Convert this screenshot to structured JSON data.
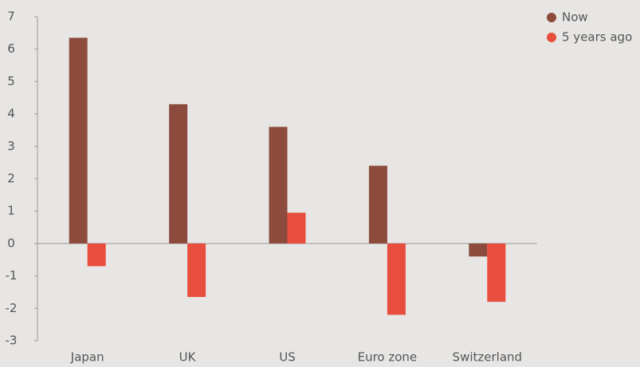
{
  "chart_data": {
    "type": "bar",
    "categories": [
      "Japan",
      "UK",
      "US",
      "Euro zone",
      "Switzerland"
    ],
    "series": [
      {
        "name": "Now",
        "color": "#8c4b3d",
        "values": [
          6.35,
          4.3,
          3.6,
          2.4,
          -0.4
        ]
      },
      {
        "name": "5 years ago",
        "color": "#e84e3e",
        "values": [
          -0.7,
          -1.65,
          0.95,
          -2.2,
          -1.8
        ]
      }
    ],
    "ylim": [
      -3,
      7
    ],
    "yticks": [
      -3,
      -2,
      -1,
      0,
      1,
      2,
      3,
      4,
      5,
      6,
      7
    ],
    "legend": "top-right"
  }
}
